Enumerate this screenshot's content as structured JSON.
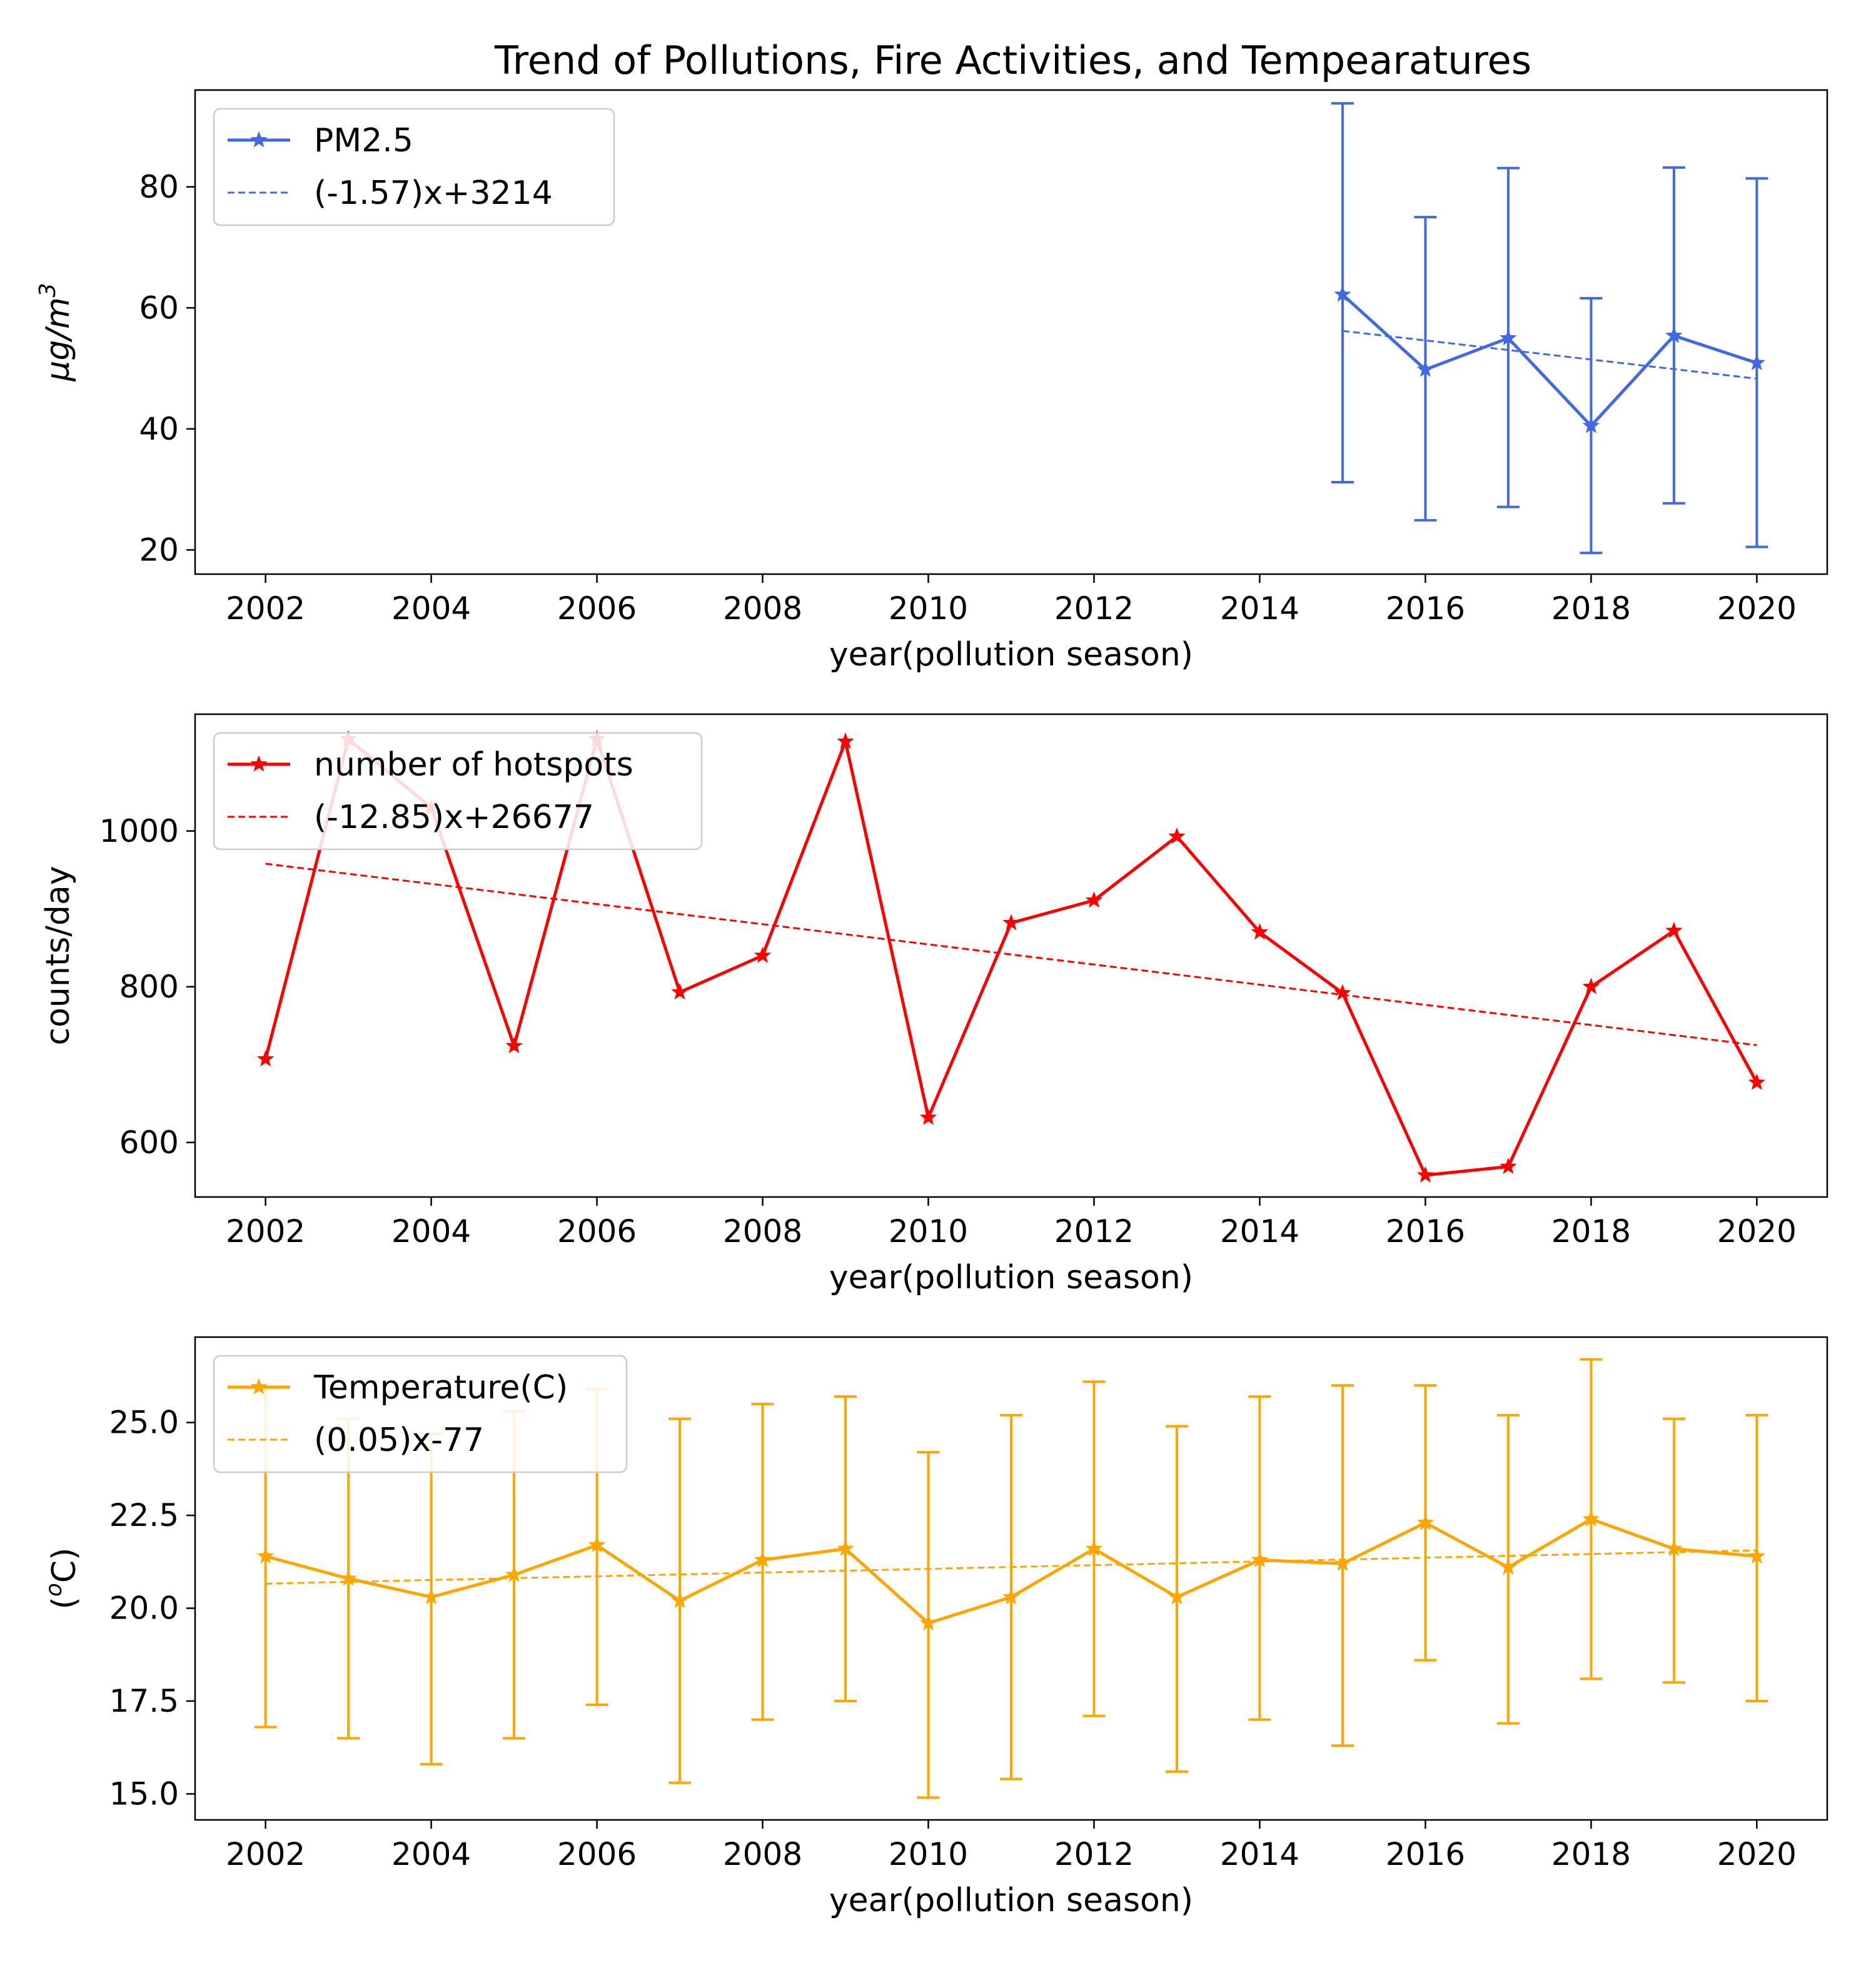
{
  "chart_data": [
    {
      "type": "line",
      "title": "Trend of Pollutions, Fire Activities, and Tempearatures",
      "xlabel": "year(pollution season)",
      "ylabel_base": "μg/m",
      "ylabel_sup": "3",
      "xlim": [
        2001.15,
        2020.85
      ],
      "ylim": [
        16,
        96
      ],
      "xticks": [
        "2002",
        "2004",
        "2006",
        "2008",
        "2010",
        "2012",
        "2014",
        "2016",
        "2018",
        "2020"
      ],
      "yticks": [
        "20",
        "40",
        "60",
        "80"
      ],
      "legend_position": "upper-left",
      "grid": false,
      "series": [
        {
          "name": "PM2.5",
          "color": "#4169e1",
          "marker": "star",
          "x": [
            2015,
            2016,
            2017,
            2018,
            2019,
            2020
          ],
          "y": [
            62.2,
            49.8,
            55.0,
            40.5,
            55.4,
            50.9
          ],
          "err_low": [
            31.2,
            24.9,
            27.1,
            19.5,
            27.7,
            20.5
          ],
          "err_high": [
            93.8,
            75.0,
            83.1,
            61.6,
            83.2,
            81.4
          ]
        }
      ],
      "trend": {
        "name": "(-1.57)x+3214",
        "slope": -1.57,
        "x": [
          2015,
          2020
        ],
        "y": [
          56.2,
          48.3
        ],
        "color": "#4169e1"
      }
    },
    {
      "type": "line",
      "xlabel": "year(pollution season)",
      "ylabel": "counts/day",
      "xlim": [
        2001.15,
        2020.85
      ],
      "ylim": [
        530,
        1150
      ],
      "xticks": [
        "2002",
        "2004",
        "2006",
        "2008",
        "2010",
        "2012",
        "2014",
        "2016",
        "2018",
        "2020"
      ],
      "yticks": [
        "600",
        "800",
        "1000"
      ],
      "legend_position": "upper-left",
      "grid": false,
      "series": [
        {
          "name": "number of hotspots",
          "color": "#ff0000",
          "marker": "star",
          "x": [
            2002,
            2003,
            2004,
            2005,
            2006,
            2007,
            2008,
            2009,
            2010,
            2011,
            2012,
            2013,
            2014,
            2015,
            2016,
            2017,
            2018,
            2019,
            2020
          ],
          "y": [
            707,
            1118,
            1030,
            724,
            1118,
            793,
            840,
            1115,
            632,
            882,
            911,
            993,
            870,
            792,
            558,
            569,
            800,
            872,
            677
          ]
        }
      ],
      "trend": {
        "name": "(-12.85)x+26677",
        "slope": -12.85,
        "x": [
          2002,
          2020
        ],
        "y": [
          958,
          725
        ],
        "color": "#ff0000"
      }
    },
    {
      "type": "line",
      "xlabel": "year(pollution season)",
      "ylabel": "(°C)",
      "ylabel_sup": "o",
      "xlim": [
        2001.15,
        2020.85
      ],
      "ylim": [
        14.3,
        27.3
      ],
      "xticks": [
        "2002",
        "2004",
        "2006",
        "2008",
        "2010",
        "2012",
        "2014",
        "2016",
        "2018",
        "2020"
      ],
      "yticks": [
        "15.0",
        "17.5",
        "20.0",
        "22.5",
        "25.0"
      ],
      "legend_position": "upper-left",
      "grid": false,
      "series": [
        {
          "name": "Temperature(C)",
          "color": "#ffa500",
          "marker": "star",
          "x": [
            2002,
            2003,
            2004,
            2005,
            2006,
            2007,
            2008,
            2009,
            2010,
            2011,
            2012,
            2013,
            2014,
            2015,
            2016,
            2017,
            2018,
            2019,
            2020
          ],
          "y": [
            21.4,
            20.8,
            20.3,
            20.9,
            21.7,
            20.2,
            21.3,
            21.6,
            19.6,
            20.3,
            21.6,
            20.3,
            21.3,
            21.2,
            22.3,
            21.1,
            22.4,
            21.6,
            21.4
          ],
          "err_low": [
            16.8,
            16.5,
            15.8,
            16.5,
            17.4,
            15.3,
            17.0,
            17.5,
            14.9,
            15.4,
            17.1,
            15.6,
            17.0,
            16.3,
            18.6,
            16.9,
            18.1,
            18.0,
            17.5
          ],
          "err_high": [
            25.9,
            25.1,
            24.7,
            25.3,
            25.9,
            25.1,
            25.5,
            25.7,
            24.2,
            25.2,
            26.1,
            24.9,
            25.7,
            26.0,
            26.0,
            25.2,
            26.7,
            25.1,
            25.2
          ]
        }
      ],
      "trend": {
        "name": "(0.05)x-77",
        "slope": 0.05,
        "x": [
          2002,
          2020
        ],
        "y": [
          20.66,
          21.56
        ],
        "color": "#ffa500"
      }
    }
  ]
}
